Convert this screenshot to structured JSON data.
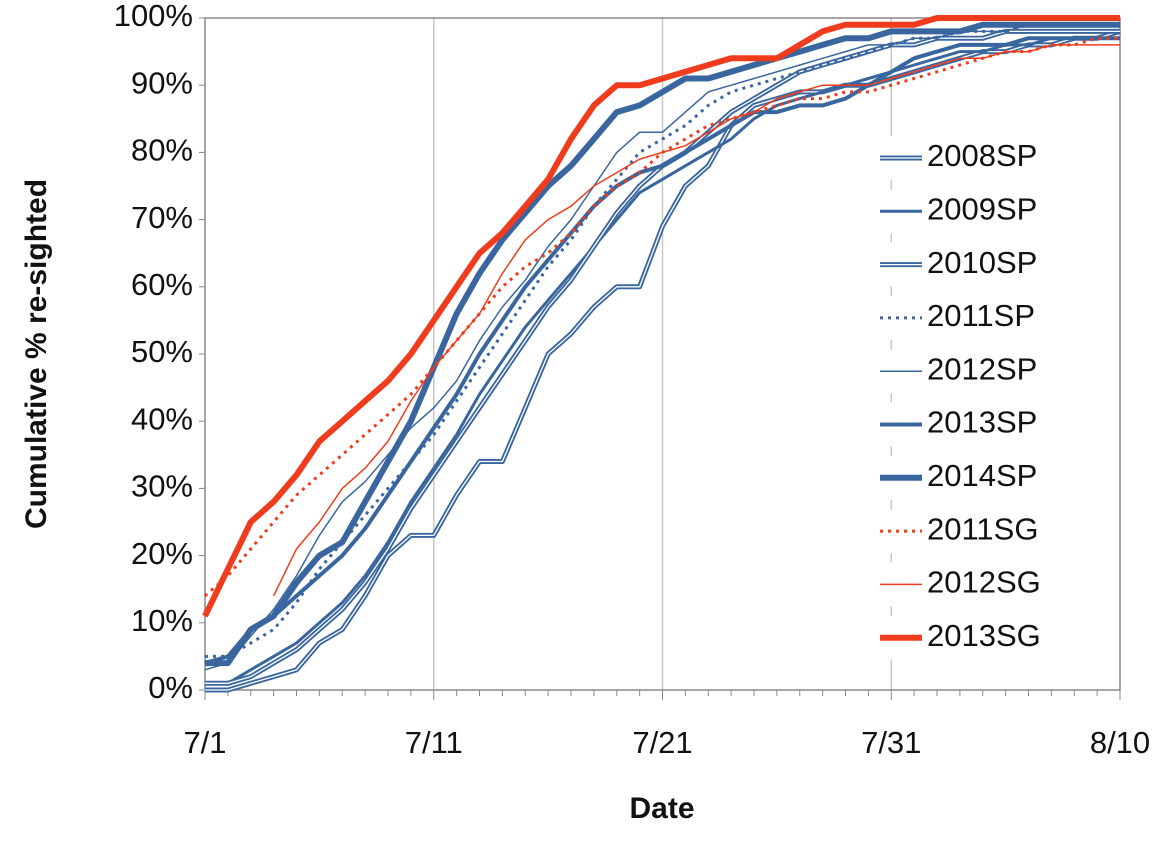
{
  "chart_data": {
    "type": "line",
    "y_label": "Cumulative % re-sighted",
    "x_label": "Date",
    "categories": [
      "7/1",
      null,
      null,
      null,
      null,
      null,
      null,
      null,
      null,
      null,
      "7/11",
      null,
      null,
      null,
      null,
      null,
      null,
      null,
      null,
      null,
      "7/21",
      null,
      null,
      null,
      null,
      null,
      null,
      null,
      null,
      null,
      "7/31",
      null,
      null,
      null,
      null,
      null,
      null,
      null,
      null,
      null,
      "8/10"
    ],
    "ylim": [
      0,
      100
    ],
    "yticks": [
      {
        "value": 0,
        "label": "0%"
      },
      {
        "value": 10,
        "label": "10%"
      },
      {
        "value": 20,
        "label": "20%"
      },
      {
        "value": 30,
        "label": "30%"
      },
      {
        "value": 40,
        "label": "40%"
      },
      {
        "value": 50,
        "label": "50%"
      },
      {
        "value": 60,
        "label": "60%"
      },
      {
        "value": 70,
        "label": "70%"
      },
      {
        "value": 80,
        "label": "80%"
      },
      {
        "value": 90,
        "label": "90%"
      },
      {
        "value": 100,
        "label": "100%"
      }
    ],
    "grid": "x",
    "legend": "right",
    "series": [
      {
        "name": "2008SP",
        "color": "#3a66a0",
        "width": 5,
        "double": true,
        "values": [
          0,
          0,
          1,
          2,
          3,
          7,
          9,
          14,
          20,
          23,
          23,
          29,
          34,
          34,
          42,
          50,
          53,
          57,
          60,
          60,
          69,
          75,
          78,
          84,
          87,
          88,
          89,
          89,
          90,
          90,
          91,
          92,
          93,
          94,
          95,
          95,
          96,
          96,
          97,
          97,
          98
        ]
      },
      {
        "name": "2009SP",
        "color": "#3a66a0",
        "width": 3,
        "values": [
          1,
          1,
          3,
          5,
          7,
          10,
          13,
          17,
          22,
          28,
          33,
          38,
          44,
          49,
          54,
          58,
          62,
          66,
          70,
          74,
          76,
          78,
          80,
          82,
          85,
          87,
          88,
          89,
          90,
          91,
          92,
          93,
          94,
          95,
          95,
          96,
          96,
          97,
          97,
          97,
          97
        ]
      },
      {
        "name": "2010SP",
        "color": "#3a66a0",
        "width": 5,
        "double": true,
        "values": [
          1,
          1,
          2,
          4,
          6,
          9,
          12,
          16,
          21,
          27,
          32,
          37,
          42,
          47,
          52,
          57,
          61,
          66,
          71,
          75,
          78,
          80,
          83,
          86,
          88,
          90,
          92,
          93,
          94,
          95,
          96,
          96,
          97,
          97,
          97,
          98,
          98,
          98,
          98,
          98,
          98
        ]
      },
      {
        "name": "2011SP",
        "color": "#3a66a0",
        "width": 3,
        "dash": "dot",
        "values": [
          5,
          5,
          7,
          9,
          13,
          18,
          22,
          26,
          30,
          34,
          38,
          43,
          48,
          53,
          58,
          63,
          67,
          72,
          76,
          80,
          82,
          84,
          87,
          89,
          90,
          91,
          92,
          93,
          94,
          95,
          96,
          97,
          97,
          98,
          98,
          98,
          99,
          99,
          99,
          99,
          99
        ]
      },
      {
        "name": "2012SP",
        "color": "#3a66a0",
        "width": 1.5,
        "values": [
          3,
          4,
          8,
          12,
          17,
          23,
          28,
          31,
          35,
          39,
          42,
          46,
          52,
          57,
          61,
          66,
          70,
          75,
          80,
          83,
          83,
          86,
          89,
          90,
          91,
          92,
          93,
          94,
          95,
          96,
          96,
          97,
          97,
          98,
          98,
          98,
          99,
          99,
          99,
          99,
          99
        ]
      },
      {
        "name": "2013SP",
        "color": "#3a66a0",
        "width": 4,
        "values": [
          4,
          5,
          9,
          11,
          14,
          17,
          20,
          24,
          29,
          34,
          39,
          44,
          50,
          55,
          60,
          64,
          68,
          72,
          75,
          77,
          78,
          80,
          82,
          84,
          86,
          86,
          87,
          87,
          88,
          90,
          92,
          94,
          95,
          96,
          96,
          96,
          97,
          97,
          97,
          97,
          97
        ]
      },
      {
        "name": "2014SP",
        "color": "#3a66a0",
        "width": 6,
        "values": [
          4,
          4,
          9,
          11,
          16,
          20,
          22,
          28,
          34,
          40,
          48,
          56,
          62,
          67,
          71,
          75,
          78,
          82,
          86,
          87,
          89,
          91,
          91,
          92,
          93,
          94,
          95,
          96,
          97,
          97,
          98,
          98,
          98,
          98,
          99,
          99,
          99,
          99,
          99,
          99,
          99
        ]
      },
      {
        "name": "2011SG",
        "color": "#f03c1c",
        "width": 3,
        "dash": "dot",
        "values": [
          14,
          17,
          21,
          25,
          29,
          32,
          35,
          38,
          41,
          44,
          48,
          52,
          56,
          60,
          63,
          65,
          68,
          72,
          75,
          77,
          80,
          82,
          84,
          85,
          86,
          87,
          88,
          88,
          89,
          89,
          90,
          91,
          92,
          93,
          94,
          95,
          95,
          96,
          96,
          97,
          97
        ]
      },
      {
        "name": "2012SG",
        "color": "#f03c1c",
        "width": 1.5,
        "values": [
          null,
          null,
          null,
          14,
          21,
          25,
          30,
          33,
          37,
          43,
          48,
          52,
          56,
          62,
          67,
          70,
          72,
          75,
          77,
          79,
          80,
          81,
          83,
          85,
          86,
          88,
          89,
          90,
          90,
          90,
          91,
          92,
          93,
          94,
          94,
          95,
          95,
          96,
          96,
          96,
          96
        ]
      },
      {
        "name": "2013SG",
        "color": "#f03c1c",
        "width": 6,
        "values": [
          11,
          18,
          25,
          28,
          32,
          37,
          40,
          43,
          46,
          50,
          55,
          60,
          65,
          68,
          72,
          76,
          82,
          87,
          90,
          90,
          91,
          92,
          93,
          94,
          94,
          94,
          96,
          98,
          99,
          99,
          99,
          99,
          100,
          100,
          100,
          100,
          100,
          100,
          100,
          100,
          100
        ]
      }
    ]
  }
}
